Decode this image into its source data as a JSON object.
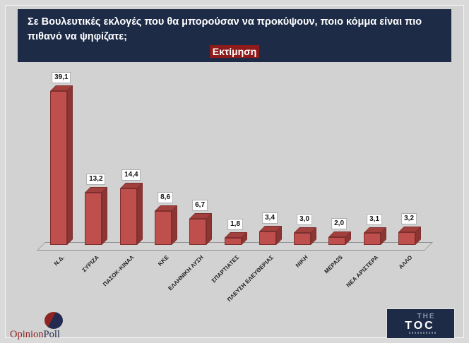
{
  "header": {
    "question": "Σε Βουλευτικές εκλογές που θα μπορούσαν να προκύψουν, ποιο κόμμα είναι πιο πιθανό να ψηφίζατε;",
    "badge": "Εκτίμηση"
  },
  "chart_data": {
    "type": "bar",
    "style": "3d-column",
    "title": "Σε Βουλευτικές εκλογές που θα μπορούσαν να προκύψουν, ποιο κόμμα είναι πιο πιθανό να ψηφίζατε;",
    "subtitle": "Εκτίμηση",
    "categories": [
      "Ν.Δ.",
      "ΣΥΡΙΖΑ",
      "ΠΑΣΟΚ-ΚΙΝΑΛ",
      "ΚΚΕ",
      "ΕΛΛΗΝΙΚΗ ΛΥΣΗ",
      "ΣΠΑΡΤΙΑΤΕΣ",
      "ΠΛΕΥΣΗ ΕΛΕΥΘΕΡΙΑΣ",
      "ΝΙΚΗ",
      "ΜΕΡΑ25",
      "ΝΕΑ ΑΡΙΣΤΕΡΑ",
      "ΑΛΛΟ"
    ],
    "values": [
      39.1,
      13.2,
      14.4,
      8.6,
      6.7,
      1.8,
      3.4,
      3.0,
      2.0,
      3.1,
      3.2
    ],
    "value_labels": [
      "39,1",
      "13,2",
      "14,4",
      "8,6",
      "6,7",
      "1,8",
      "3,4",
      "3,0",
      "2,0",
      "3,1",
      "3,2"
    ],
    "xlabel": "",
    "ylabel": "",
    "ylim": [
      0,
      42
    ],
    "grid": false,
    "legend": false,
    "colors": {
      "bar_front": "#bf4f4c",
      "bar_side": "#8c3634",
      "bar_top": "#a2403d"
    }
  },
  "colors": {
    "header_bg": "#1d2b47",
    "badge_bg": "#8e1b1b",
    "page_bg": "#d2d2d2",
    "opinionpoll_red": "#8e2424",
    "opinionpoll_navy": "#242b50"
  },
  "footer": {
    "opinionpoll": {
      "part1": "Opinion",
      "part2": "Poll"
    },
    "thetoc": {
      "line1": "THE",
      "line2": "TOC"
    }
  }
}
